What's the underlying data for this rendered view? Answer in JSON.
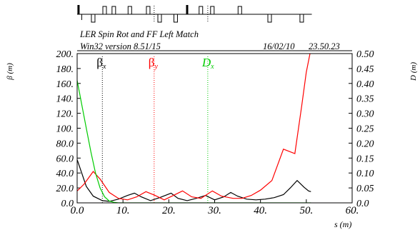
{
  "chart_data": {
    "type": "line",
    "subtitle": "LER Spin Rot and FF Left Match",
    "header_left": "Win32 version 8.51/15",
    "header_date": "16/02/10",
    "header_time": "23.50.23",
    "xlabel": "s (m)",
    "ylabel_left": "β (m)",
    "ylabel_right": "D (m)",
    "xlim": [
      0,
      60
    ],
    "ylim_left": [
      0,
      200
    ],
    "ylim_right": [
      0,
      0.5
    ],
    "x_ticks": [
      "0.0",
      "10.",
      "20.",
      "30.",
      "40.",
      "50.",
      "60."
    ],
    "y_left_ticks": [
      "0.0",
      "20.0",
      "40.0",
      "60.0",
      "80.0",
      "100.",
      "120.",
      "140.",
      "160.",
      "180.",
      "200."
    ],
    "y_right_ticks": [
      "0.0",
      "0.05",
      "0.10",
      "0.15",
      "0.20",
      "0.25",
      "0.30",
      "0.35",
      "0.40",
      "0.45",
      "0.50"
    ],
    "legend": [
      {
        "name": "βx",
        "base": "β",
        "sub": "x",
        "color": "#000000",
        "marker_s": 5.5
      },
      {
        "name": "βy",
        "base": "β",
        "sub": "y",
        "color": "#ff0000",
        "marker_s": 16.8
      },
      {
        "name": "Dx",
        "base": "D",
        "sub": "x",
        "color": "#00cc00",
        "marker_s": 28.5
      }
    ],
    "series": [
      {
        "name": "βx",
        "axis": "left",
        "color": "#000000",
        "x": [
          0,
          1,
          2,
          3.5,
          5.5,
          7,
          9,
          11,
          12.5,
          14,
          16,
          18,
          20.5,
          22,
          24,
          26,
          28,
          30,
          32,
          33.5,
          35,
          37,
          39,
          41,
          43,
          45,
          46.5,
          48,
          49.5,
          50.5,
          51
        ],
        "y": [
          58,
          40,
          22,
          9,
          3,
          2,
          5,
          10,
          13,
          8,
          3,
          7,
          13,
          6,
          3,
          6,
          10,
          4,
          8,
          14,
          9,
          5,
          4,
          5,
          7,
          11,
          20,
          30,
          21,
          16,
          15
        ]
      },
      {
        "name": "βy",
        "axis": "left",
        "color": "#ff0000",
        "x": [
          0,
          1.5,
          3.5,
          5,
          7,
          9,
          11,
          13,
          15,
          17,
          19,
          21,
          23,
          25,
          27,
          29.5,
          31.5,
          34,
          36,
          38,
          40,
          42.5,
          45,
          47.5,
          49,
          50,
          50.8,
          51.2
        ],
        "y": [
          16,
          25,
          42,
          32,
          14,
          6,
          4,
          8,
          15,
          10,
          4,
          10,
          16,
          8,
          6,
          16,
          9,
          6,
          6,
          10,
          17,
          30,
          72,
          66,
          130,
          175,
          200,
          206
        ]
      },
      {
        "name": "Dx",
        "axis": "right",
        "color": "#00cc00",
        "x": [
          0,
          0.5,
          1,
          2,
          3,
          4,
          5,
          6,
          7,
          8,
          9,
          10,
          12,
          15,
          20,
          25,
          30,
          35,
          40,
          45,
          50,
          51
        ],
        "y": [
          0.41,
          0.37,
          0.33,
          0.25,
          0.17,
          0.1,
          0.05,
          0.02,
          0.006,
          0.002,
          0,
          0,
          0,
          0,
          0,
          0,
          0,
          0,
          0,
          0,
          0,
          0
        ]
      }
    ],
    "lattice": {
      "markers": [
        {
          "s": 0.3,
          "kind": "thick",
          "dir": "up"
        },
        {
          "s": 1.0,
          "kind": "bar",
          "dir": "down"
        },
        {
          "s": 3.5,
          "kind": "box",
          "dir": "down"
        },
        {
          "s": 6.0,
          "kind": "box",
          "dir": "up"
        },
        {
          "s": 8.0,
          "kind": "box",
          "dir": "up"
        },
        {
          "s": 11.5,
          "kind": "box",
          "dir": "up"
        },
        {
          "s": 15.5,
          "kind": "box",
          "dir": "up"
        },
        {
          "s": 18.0,
          "kind": "box",
          "dir": "down"
        },
        {
          "s": 21.5,
          "kind": "box",
          "dir": "down"
        },
        {
          "s": 24.0,
          "kind": "thick",
          "dir": "up"
        },
        {
          "s": 27.0,
          "kind": "box",
          "dir": "up"
        },
        {
          "s": 29.5,
          "kind": "box",
          "dir": "up"
        },
        {
          "s": 35.5,
          "kind": "box",
          "dir": "up"
        },
        {
          "s": 42.0,
          "kind": "box",
          "dir": "down"
        },
        {
          "s": 49.0,
          "kind": "box",
          "dir": "down"
        }
      ],
      "dotted": [
        16.8,
        28.5
      ]
    },
    "grid": false,
    "legend_placement": "top"
  }
}
